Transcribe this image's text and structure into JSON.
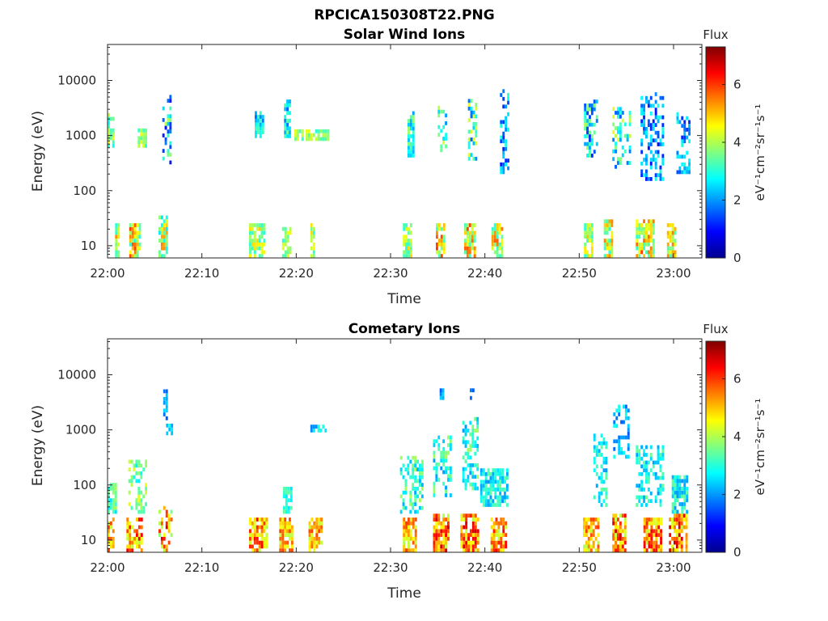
{
  "figure_title": "RPCICA150308T22.PNG",
  "colormap": [
    "#00008f",
    "#0000ff",
    "#0080ff",
    "#00ffff",
    "#80ff80",
    "#ffff00",
    "#ff8000",
    "#ff0000",
    "#800000"
  ],
  "chart_data": [
    {
      "type": "heatmap",
      "title": "Solar Wind Ions",
      "xlabel": "Time",
      "ylabel": "Energy (eV)",
      "x_range": [
        "22:00",
        "23:03"
      ],
      "x_ticks": [
        "22:00",
        "22:10",
        "22:20",
        "22:30",
        "22:40",
        "22:50",
        "23:00"
      ],
      "y_scale": "log",
      "y_range": [
        6,
        45000
      ],
      "y_ticks": [
        {
          "value": 10,
          "label": "10"
        },
        {
          "value": 100,
          "label": "100"
        },
        {
          "value": 1000,
          "label": "1000"
        },
        {
          "value": 10000,
          "label": "10000"
        }
      ],
      "colorbar": {
        "title": "Flux",
        "unit": "eV⁻¹cm⁻²sr⁻¹s⁻¹",
        "range": [
          0,
          7.3
        ],
        "ticks": [
          0,
          2,
          4,
          6
        ]
      },
      "clusters": [
        {
          "t": [
            0.0,
            0.6
          ],
          "e": [
            600,
            2500
          ],
          "level": [
            2.5,
            4.5
          ]
        },
        {
          "t": [
            0.8,
            1.2
          ],
          "e": [
            6,
            25
          ],
          "level": [
            3,
            5.5
          ]
        },
        {
          "t": [
            2.3,
            3.4
          ],
          "e": [
            6,
            25
          ],
          "level": [
            3,
            6
          ]
        },
        {
          "t": [
            3.2,
            4.0
          ],
          "e": [
            600,
            1200
          ],
          "level": [
            3,
            4.5
          ]
        },
        {
          "t": [
            5.4,
            6.4
          ],
          "e": [
            6,
            35
          ],
          "level": [
            2.5,
            5.5
          ]
        },
        {
          "t": [
            5.8,
            6.6
          ],
          "e": [
            300,
            5000
          ],
          "level": [
            1.0,
            4.2
          ]
        },
        {
          "t": [
            15.0,
            16.6
          ],
          "e": [
            6,
            25
          ],
          "level": [
            3,
            5
          ]
        },
        {
          "t": [
            15.6,
            16.6
          ],
          "e": [
            900,
            2500
          ],
          "level": [
            1.5,
            3.5
          ]
        },
        {
          "t": [
            18.5,
            19.4
          ],
          "e": [
            6,
            20
          ],
          "level": [
            3,
            4.5
          ]
        },
        {
          "t": [
            18.7,
            19.3
          ],
          "e": [
            900,
            4500
          ],
          "level": [
            1.5,
            3.5
          ]
        },
        {
          "t": [
            19.8,
            20.6
          ],
          "e": [
            800,
            1200
          ],
          "level": [
            3,
            4.5
          ]
        },
        {
          "t": [
            21.0,
            23.5
          ],
          "e": [
            800,
            1200
          ],
          "level": [
            3,
            4.5
          ]
        },
        {
          "t": [
            21.5,
            22.0
          ],
          "e": [
            6,
            25
          ],
          "level": [
            3,
            5
          ]
        },
        {
          "t": [
            31.3,
            32.3
          ],
          "e": [
            6,
            25
          ],
          "level": [
            3,
            5
          ]
        },
        {
          "t": [
            31.8,
            32.4
          ],
          "e": [
            400,
            2500
          ],
          "level": [
            2,
            4
          ]
        },
        {
          "t": [
            34.8,
            35.8
          ],
          "e": [
            6,
            25
          ],
          "level": [
            3,
            6
          ]
        },
        {
          "t": [
            35.0,
            35.9
          ],
          "e": [
            500,
            4000
          ],
          "level": [
            2,
            4.5
          ]
        },
        {
          "t": [
            37.8,
            39.0
          ],
          "e": [
            6,
            25
          ],
          "level": [
            3,
            6
          ]
        },
        {
          "t": [
            38.2,
            39.0
          ],
          "e": [
            350,
            4500
          ],
          "level": [
            1.5,
            4.5
          ]
        },
        {
          "t": [
            40.7,
            41.8
          ],
          "e": [
            6,
            25
          ],
          "level": [
            3,
            6
          ]
        },
        {
          "t": [
            41.6,
            42.6
          ],
          "e": [
            200,
            6000
          ],
          "level": [
            1,
            3
          ]
        },
        {
          "t": [
            50.5,
            51.5
          ],
          "e": [
            6,
            25
          ],
          "level": [
            3,
            5
          ]
        },
        {
          "t": [
            50.5,
            51.8
          ],
          "e": [
            400,
            4000
          ],
          "level": [
            1,
            4
          ]
        },
        {
          "t": [
            52.6,
            53.6
          ],
          "e": [
            6,
            30
          ],
          "level": [
            3,
            5.5
          ]
        },
        {
          "t": [
            53.5,
            55.3
          ],
          "e": [
            250,
            3000
          ],
          "level": [
            1.5,
            4.5
          ]
        },
        {
          "t": [
            56.0,
            57.8
          ],
          "e": [
            6,
            30
          ],
          "level": [
            3,
            6
          ]
        },
        {
          "t": [
            56.5,
            59.0
          ],
          "e": [
            150,
            6000
          ],
          "level": [
            1,
            3
          ]
        },
        {
          "t": [
            59.3,
            60.3
          ],
          "e": [
            6,
            25
          ],
          "level": [
            3,
            5.5
          ]
        },
        {
          "t": [
            60.3,
            61.8
          ],
          "e": [
            200,
            2500
          ],
          "level": [
            1,
            3
          ]
        }
      ]
    },
    {
      "type": "heatmap",
      "title": "Cometary Ions",
      "xlabel": "Time",
      "ylabel": "Energy (eV)",
      "x_range": [
        "22:00",
        "23:03"
      ],
      "x_ticks": [
        "22:00",
        "22:10",
        "22:20",
        "22:30",
        "22:40",
        "22:50",
        "23:00"
      ],
      "y_scale": "log",
      "y_range": [
        6,
        45000
      ],
      "y_ticks": [
        {
          "value": 10,
          "label": "10"
        },
        {
          "value": 100,
          "label": "100"
        },
        {
          "value": 1000,
          "label": "1000"
        },
        {
          "value": 10000,
          "label": "10000"
        }
      ],
      "colorbar": {
        "title": "Flux",
        "unit": "eV⁻¹cm⁻²sr⁻¹s⁻¹",
        "range": [
          0,
          7.3
        ],
        "ticks": [
          0,
          2,
          4,
          6
        ]
      },
      "clusters": [
        {
          "t": [
            0.0,
            0.6
          ],
          "e": [
            6,
            25
          ],
          "level": [
            4,
            6
          ]
        },
        {
          "t": [
            0.0,
            1.0
          ],
          "e": [
            30,
            100
          ],
          "level": [
            2.5,
            4
          ]
        },
        {
          "t": [
            2.0,
            3.6
          ],
          "e": [
            6,
            25
          ],
          "level": [
            4,
            6.5
          ]
        },
        {
          "t": [
            2.2,
            4.2
          ],
          "e": [
            30,
            250
          ],
          "level": [
            2.5,
            4.5
          ]
        },
        {
          "t": [
            5.4,
            6.8
          ],
          "e": [
            6,
            40
          ],
          "level": [
            3.5,
            6.8
          ]
        },
        {
          "t": [
            5.9,
            6.4
          ],
          "e": [
            1500,
            5000
          ],
          "level": [
            1.5,
            2.5
          ]
        },
        {
          "t": [
            6.2,
            6.8
          ],
          "e": [
            800,
            1200
          ],
          "level": [
            2,
            3
          ]
        },
        {
          "t": [
            15.0,
            16.8
          ],
          "e": [
            6,
            25
          ],
          "level": [
            4,
            6.5
          ]
        },
        {
          "t": [
            18.2,
            19.6
          ],
          "e": [
            6,
            25
          ],
          "level": [
            4,
            6
          ]
        },
        {
          "t": [
            18.6,
            19.6
          ],
          "e": [
            30,
            80
          ],
          "level": [
            2.5,
            3.5
          ]
        },
        {
          "t": [
            21.3,
            22.8
          ],
          "e": [
            6,
            25
          ],
          "level": [
            4,
            6
          ]
        },
        {
          "t": [
            21.5,
            23.3
          ],
          "e": [
            900,
            1200
          ],
          "level": [
            1.5,
            3
          ]
        },
        {
          "t": [
            31.3,
            32.8
          ],
          "e": [
            6,
            25
          ],
          "level": [
            4,
            6
          ]
        },
        {
          "t": [
            31.0,
            33.5
          ],
          "e": [
            30,
            300
          ],
          "level": [
            2,
            4
          ]
        },
        {
          "t": [
            34.5,
            36.2
          ],
          "e": [
            6,
            30
          ],
          "level": [
            4,
            6.8
          ]
        },
        {
          "t": [
            34.5,
            36.5
          ],
          "e": [
            60,
            700
          ],
          "level": [
            2,
            4
          ]
        },
        {
          "t": [
            35.2,
            35.6
          ],
          "e": [
            3500,
            5000
          ],
          "level": [
            1.5,
            2.5
          ]
        },
        {
          "t": [
            37.4,
            39.2
          ],
          "e": [
            6,
            30
          ],
          "level": [
            4,
            6.8
          ]
        },
        {
          "t": [
            37.6,
            39.2
          ],
          "e": [
            80,
            1500
          ],
          "level": [
            2,
            4
          ]
        },
        {
          "t": [
            38.4,
            38.8
          ],
          "e": [
            3500,
            5000
          ],
          "level": [
            1.5,
            2.5
          ]
        },
        {
          "t": [
            40.6,
            42.2
          ],
          "e": [
            6,
            25
          ],
          "level": [
            4,
            6.5
          ]
        },
        {
          "t": [
            39.5,
            42.5
          ],
          "e": [
            40,
            200
          ],
          "level": [
            2,
            3.5
          ]
        },
        {
          "t": [
            50.4,
            52.0
          ],
          "e": [
            6,
            25
          ],
          "level": [
            4,
            6
          ]
        },
        {
          "t": [
            51.5,
            52.8
          ],
          "e": [
            40,
            800
          ],
          "level": [
            2,
            3.5
          ]
        },
        {
          "t": [
            53.5,
            55.0
          ],
          "e": [
            6,
            30
          ],
          "level": [
            4,
            6.8
          ]
        },
        {
          "t": [
            53.6,
            55.3
          ],
          "e": [
            300,
            2500
          ],
          "level": [
            1.5,
            3
          ]
        },
        {
          "t": [
            56.8,
            58.6
          ],
          "e": [
            6,
            25
          ],
          "level": [
            4,
            6.5
          ]
        },
        {
          "t": [
            56.0,
            59.0
          ],
          "e": [
            40,
            500
          ],
          "level": [
            2,
            3.5
          ]
        },
        {
          "t": [
            59.5,
            61.5
          ],
          "e": [
            6,
            30
          ],
          "level": [
            4,
            6.8
          ]
        },
        {
          "t": [
            59.8,
            61.5
          ],
          "e": [
            30,
            150
          ],
          "level": [
            2,
            3.5
          ]
        }
      ]
    }
  ]
}
